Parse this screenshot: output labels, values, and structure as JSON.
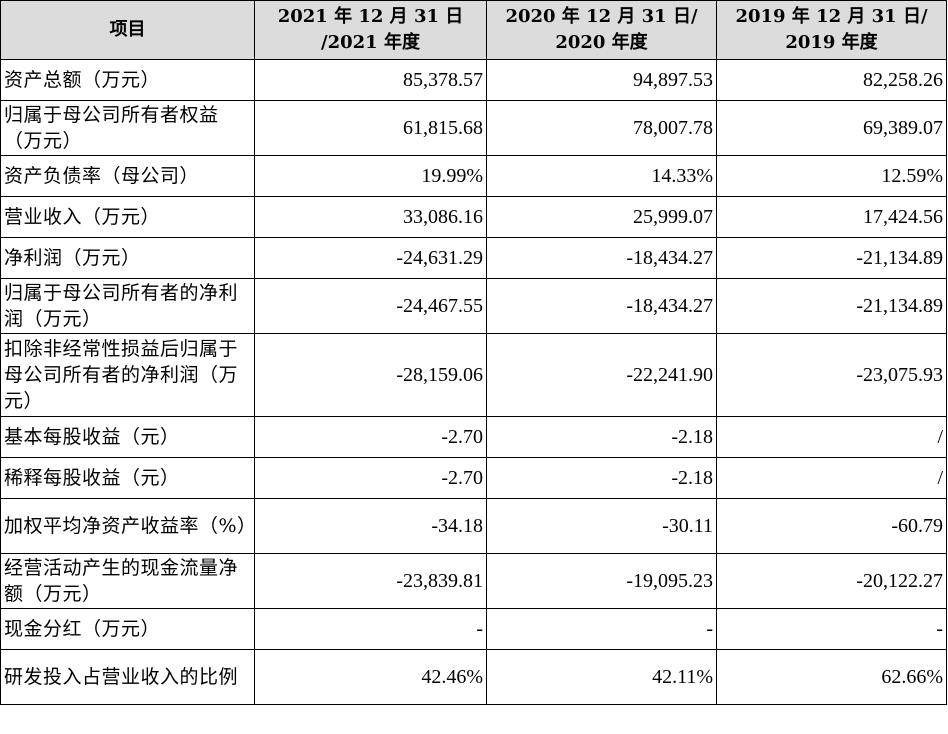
{
  "table": {
    "headers": [
      "项目",
      "2021 年 12 月 31 日\n/2021 年度",
      "2020 年 12 月 31 日/\n2020 年度",
      "2019 年 12 月 31 日/\n2019 年度"
    ],
    "rows": [
      {
        "label": "资产总额（万元）",
        "v2021": "85,378.57",
        "v2020": "94,897.53",
        "v2019": "82,258.26"
      },
      {
        "label": "归属于母公司所有者权益（万元）",
        "v2021": "61,815.68",
        "v2020": "78,007.78",
        "v2019": "69,389.07"
      },
      {
        "label": "资产负债率（母公司）",
        "v2021": "19.99%",
        "v2020": "14.33%",
        "v2019": "12.59%"
      },
      {
        "label": "营业收入（万元）",
        "v2021": "33,086.16",
        "v2020": "25,999.07",
        "v2019": "17,424.56"
      },
      {
        "label": "净利润（万元）",
        "v2021": "-24,631.29",
        "v2020": "-18,434.27",
        "v2019": "-21,134.89"
      },
      {
        "label": "归属于母公司所有者的净利润（万元）",
        "v2021": "-24,467.55",
        "v2020": "-18,434.27",
        "v2019": "-21,134.89"
      },
      {
        "label": "扣除非经常性损益后归属于母公司所有者的净利润（万元）",
        "v2021": "-28,159.06",
        "v2020": "-22,241.90",
        "v2019": "-23,075.93"
      },
      {
        "label": "基本每股收益（元）",
        "v2021": "-2.70",
        "v2020": "-2.18",
        "v2019": "/"
      },
      {
        "label": "稀释每股收益（元）",
        "v2021": "-2.70",
        "v2020": "-2.18",
        "v2019": "/"
      },
      {
        "label": "加权平均净资产收益率（%）",
        "v2021": "-34.18",
        "v2020": "-30.11",
        "v2019": "-60.79"
      },
      {
        "label": "经营活动产生的现金流量净额（万元）",
        "v2021": "-23,839.81",
        "v2020": "-19,095.23",
        "v2019": "-20,122.27"
      },
      {
        "label": "现金分红（万元）",
        "v2021": "-",
        "v2020": "-",
        "v2019": "-"
      },
      {
        "label": "研发投入占营业收入的比例",
        "v2021": "42.46%",
        "v2020": "42.11%",
        "v2019": "62.66%"
      }
    ]
  }
}
